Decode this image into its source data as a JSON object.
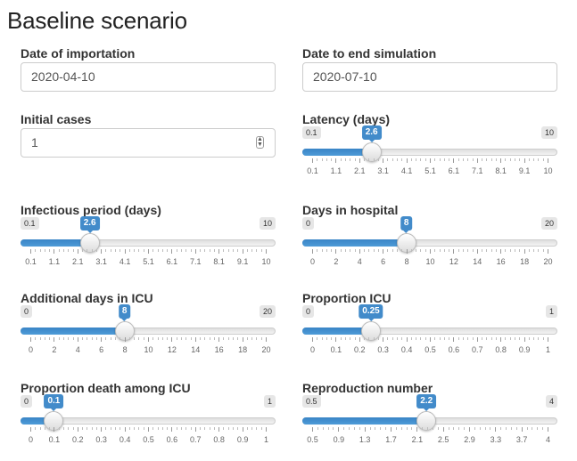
{
  "page": {
    "title": "Baseline scenario"
  },
  "inputs": {
    "importation": {
      "label": "Date of importation",
      "value": "2020-04-10"
    },
    "end_date": {
      "label": "Date to end simulation",
      "value": "2020-07-10"
    },
    "initial_cases": {
      "label": "Initial cases",
      "value": "1"
    }
  },
  "sliders": [
    {
      "id": "latency",
      "label": "Latency (days)",
      "min": 0.1,
      "max": 10,
      "value": 2.6,
      "min_label": "0.1",
      "max_label": "10",
      "value_label": "2.6",
      "ticks": [
        "0.1",
        "1.1",
        "2.1",
        "3.1",
        "4.1",
        "5.1",
        "6.1",
        "7.1",
        "8.1",
        "9.1",
        "10"
      ]
    },
    {
      "id": "infectious",
      "label": "Infectious period (days)",
      "min": 0.1,
      "max": 10,
      "value": 2.6,
      "min_label": "0.1",
      "max_label": "10",
      "value_label": "2.6",
      "ticks": [
        "0.1",
        "1.1",
        "2.1",
        "3.1",
        "4.1",
        "5.1",
        "6.1",
        "7.1",
        "8.1",
        "9.1",
        "10"
      ]
    },
    {
      "id": "hospital",
      "label": "Days in hospital",
      "min": 0,
      "max": 20,
      "value": 8,
      "min_label": "0",
      "max_label": "20",
      "value_label": "8",
      "ticks": [
        "0",
        "2",
        "4",
        "6",
        "8",
        "10",
        "12",
        "14",
        "16",
        "18",
        "20"
      ]
    },
    {
      "id": "icu_days",
      "label": "Additional days in ICU",
      "min": 0,
      "max": 20,
      "value": 8,
      "min_label": "0",
      "max_label": "20",
      "value_label": "8",
      "ticks": [
        "0",
        "2",
        "4",
        "6",
        "8",
        "10",
        "12",
        "14",
        "16",
        "18",
        "20"
      ]
    },
    {
      "id": "prop_icu",
      "label": "Proportion ICU",
      "min": 0,
      "max": 1,
      "value": 0.25,
      "min_label": "0",
      "max_label": "1",
      "value_label": "0.25",
      "ticks": [
        "0",
        "0.1",
        "0.2",
        "0.3",
        "0.4",
        "0.5",
        "0.6",
        "0.7",
        "0.8",
        "0.9",
        "1"
      ]
    },
    {
      "id": "prop_death",
      "label": "Proportion death among ICU",
      "min": 0,
      "max": 1,
      "value": 0.1,
      "min_label": "0",
      "max_label": "1",
      "value_label": "0.1",
      "ticks": [
        "0",
        "0.1",
        "0.2",
        "0.3",
        "0.4",
        "0.5",
        "0.6",
        "0.7",
        "0.8",
        "0.9",
        "1"
      ]
    },
    {
      "id": "r0",
      "label": "Reproduction number",
      "min": 0.5,
      "max": 4,
      "value": 2.2,
      "min_label": "0.5",
      "max_label": "4",
      "value_label": "2.2",
      "ticks": [
        "0.5",
        "0.9",
        "1.3",
        "1.7",
        "2.1",
        "2.5",
        "2.9",
        "3.3",
        "3.7",
        "4"
      ]
    }
  ],
  "colors": {
    "accent": "#428bca",
    "track": "#e6e6e6"
  }
}
